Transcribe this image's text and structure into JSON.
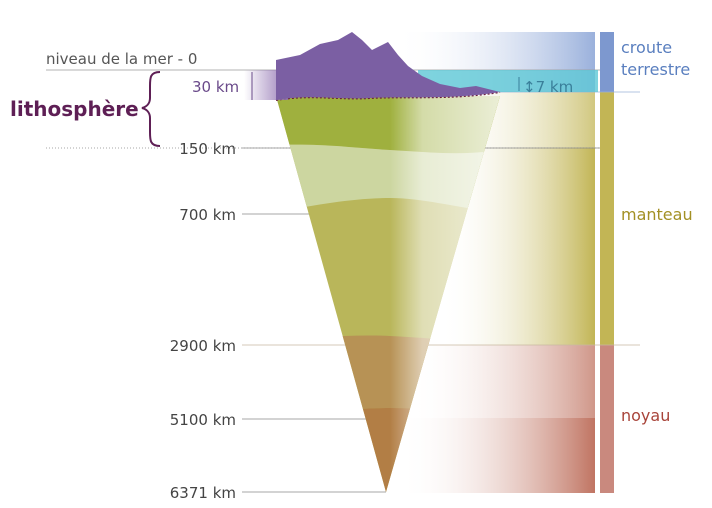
{
  "sea_level_label": "niveau de la mer - 0",
  "lithosphere_label": "lithosphère",
  "continental_depth_label": "30 km",
  "oceanic_depth_label": "7 km",
  "depth_labels": [
    "150 km",
    "700 km",
    "2900 km",
    "5100 km",
    "6371 km"
  ],
  "layers": {
    "crust_line1": "croute",
    "crust_line2": "terrestre",
    "mantle": "manteau",
    "core": "noyau"
  },
  "colors": {
    "crust": "#7b5fa3",
    "ocean": "#5ec8d6",
    "mantle": "#b5b352",
    "core": "#b0684e",
    "lithosphere": "#5e1f55",
    "crust_bar": "#7d98cf",
    "mantle_bar": "#c2b555",
    "core_bar": "#c9897e"
  }
}
